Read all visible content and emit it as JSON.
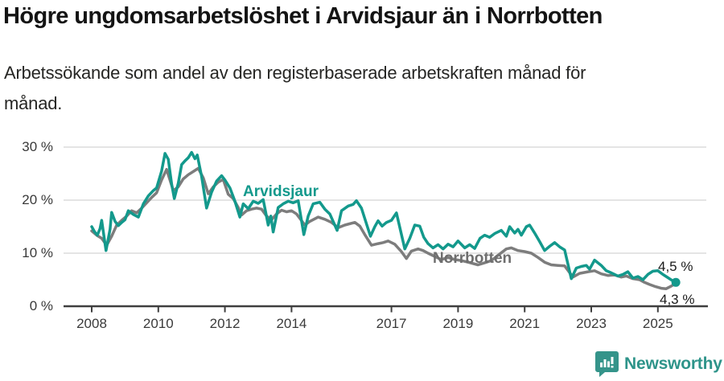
{
  "header": {
    "title": "Högre ungdomsarbetslöshet i Arvidsjaur än i Norrbotten",
    "subtitle_line1": "Arbetssökande som andel av den registerbaserade arbetskraften månad för",
    "subtitle_line2": "månad."
  },
  "chart_data": {
    "type": "line",
    "title": "Högre ungdomsarbetslöshet i Arvidsjaur än i Norrbotten",
    "subtitle": "Arbetssökande som andel av den registerbaserade arbetskraften månad för månad.",
    "unit": "%",
    "x_frequency": "monthly",
    "xlim": [
      2007.7,
      2026.2
    ],
    "ylim": [
      0,
      30
    ],
    "grid": "horizontal",
    "y_ticks": [
      {
        "value": 0,
        "label": "0 %"
      },
      {
        "value": 10,
        "label": "10 %"
      },
      {
        "value": 20,
        "label": "20 %"
      },
      {
        "value": 30,
        "label": "30 %"
      }
    ],
    "x_ticks": [
      {
        "value": 2008,
        "label": "2008"
      },
      {
        "value": 2010,
        "label": "2010"
      },
      {
        "value": 2012,
        "label": "2012"
      },
      {
        "value": 2014,
        "label": "2014"
      },
      {
        "value": 2017,
        "label": "2017"
      },
      {
        "value": 2019,
        "label": "2019"
      },
      {
        "value": 2021,
        "label": "2021"
      },
      {
        "value": 2023,
        "label": "2023"
      },
      {
        "value": 2025,
        "label": "2025"
      }
    ],
    "series": [
      {
        "name": "Norrbotten",
        "color": "#7d7d7d",
        "end_value": 4.3,
        "points": [
          [
            2008.0,
            14.2
          ],
          [
            2008.15,
            13.4
          ],
          [
            2008.3,
            12.8
          ],
          [
            2008.45,
            11.5
          ],
          [
            2008.6,
            13.2
          ],
          [
            2008.75,
            15.3
          ],
          [
            2008.9,
            16.2
          ],
          [
            2009.05,
            17.0
          ],
          [
            2009.2,
            18.0
          ],
          [
            2009.35,
            17.6
          ],
          [
            2009.5,
            18.5
          ],
          [
            2009.65,
            19.5
          ],
          [
            2009.8,
            20.5
          ],
          [
            2009.95,
            21.4
          ],
          [
            2010.1,
            23.8
          ],
          [
            2010.25,
            25.8
          ],
          [
            2010.45,
            21.8
          ],
          [
            2010.6,
            22.5
          ],
          [
            2010.75,
            24.0
          ],
          [
            2010.9,
            24.8
          ],
          [
            2011.05,
            25.4
          ],
          [
            2011.2,
            26.0
          ],
          [
            2011.35,
            24.2
          ],
          [
            2011.5,
            21.2
          ],
          [
            2011.65,
            22.5
          ],
          [
            2011.8,
            23.4
          ],
          [
            2011.95,
            23.9
          ],
          [
            2012.1,
            21.1
          ],
          [
            2012.25,
            20.3
          ],
          [
            2012.4,
            18.6
          ],
          [
            2012.5,
            17.2
          ],
          [
            2012.65,
            18.0
          ],
          [
            2012.8,
            18.3
          ],
          [
            2012.95,
            18.5
          ],
          [
            2013.1,
            18.3
          ],
          [
            2013.25,
            17.0
          ],
          [
            2013.4,
            16.3
          ],
          [
            2013.55,
            17.4
          ],
          [
            2013.7,
            18.1
          ],
          [
            2013.85,
            17.8
          ],
          [
            2014.0,
            18.0
          ],
          [
            2014.15,
            17.4
          ],
          [
            2014.4,
            15.3
          ],
          [
            2014.55,
            16.0
          ],
          [
            2014.8,
            16.8
          ],
          [
            2015.0,
            16.4
          ],
          [
            2015.2,
            15.8
          ],
          [
            2015.4,
            14.8
          ],
          [
            2015.6,
            15.3
          ],
          [
            2015.9,
            15.8
          ],
          [
            2016.05,
            15.1
          ],
          [
            2016.2,
            13.5
          ],
          [
            2016.4,
            11.5
          ],
          [
            2016.6,
            11.8
          ],
          [
            2016.75,
            12.0
          ],
          [
            2016.9,
            12.3
          ],
          [
            2017.1,
            11.7
          ],
          [
            2017.3,
            10.3
          ],
          [
            2017.45,
            9.0
          ],
          [
            2017.6,
            10.4
          ],
          [
            2017.8,
            10.8
          ],
          [
            2017.95,
            10.5
          ],
          [
            2018.1,
            10.0
          ],
          [
            2018.3,
            9.4
          ],
          [
            2018.5,
            8.8
          ],
          [
            2018.7,
            9.2
          ],
          [
            2018.9,
            8.8
          ],
          [
            2019.1,
            8.6
          ],
          [
            2019.3,
            8.3
          ],
          [
            2019.6,
            7.8
          ],
          [
            2019.8,
            8.2
          ],
          [
            2020.0,
            8.6
          ],
          [
            2020.2,
            9.6
          ],
          [
            2020.45,
            10.8
          ],
          [
            2020.6,
            11.0
          ],
          [
            2020.8,
            10.5
          ],
          [
            2021.0,
            10.3
          ],
          [
            2021.2,
            10.0
          ],
          [
            2021.4,
            9.2
          ],
          [
            2021.6,
            8.3
          ],
          [
            2021.8,
            7.8
          ],
          [
            2022.0,
            7.7
          ],
          [
            2022.2,
            7.6
          ],
          [
            2022.45,
            5.5
          ],
          [
            2022.65,
            6.2
          ],
          [
            2022.9,
            6.5
          ],
          [
            2023.1,
            6.7
          ],
          [
            2023.3,
            6.1
          ],
          [
            2023.5,
            5.8
          ],
          [
            2023.7,
            5.9
          ],
          [
            2023.9,
            5.5
          ],
          [
            2024.05,
            5.7
          ],
          [
            2024.25,
            5.2
          ],
          [
            2024.45,
            5.0
          ],
          [
            2024.6,
            4.5
          ],
          [
            2024.75,
            4.1
          ],
          [
            2024.93,
            3.7
          ],
          [
            2025.1,
            3.4
          ],
          [
            2025.25,
            3.3
          ],
          [
            2025.4,
            3.8
          ],
          [
            2025.54,
            4.3
          ]
        ]
      },
      {
        "name": "Arvidsjaur",
        "color": "#13998c",
        "end_value": 4.5,
        "end_dot": true,
        "points": [
          [
            2008.0,
            15.0
          ],
          [
            2008.08,
            14.1
          ],
          [
            2008.17,
            13.4
          ],
          [
            2008.25,
            14.6
          ],
          [
            2008.3,
            16.2
          ],
          [
            2008.43,
            10.5
          ],
          [
            2008.55,
            14.5
          ],
          [
            2008.6,
            17.7
          ],
          [
            2008.7,
            16.0
          ],
          [
            2008.8,
            15.2
          ],
          [
            2008.9,
            15.8
          ],
          [
            2009.0,
            16.3
          ],
          [
            2009.1,
            18.0
          ],
          [
            2009.25,
            17.3
          ],
          [
            2009.4,
            16.8
          ],
          [
            2009.55,
            19.3
          ],
          [
            2009.7,
            20.8
          ],
          [
            2009.85,
            21.8
          ],
          [
            2009.95,
            22.3
          ],
          [
            2010.1,
            25.5
          ],
          [
            2010.2,
            28.8
          ],
          [
            2010.3,
            27.7
          ],
          [
            2010.4,
            23.0
          ],
          [
            2010.48,
            20.3
          ],
          [
            2010.6,
            23.2
          ],
          [
            2010.7,
            26.7
          ],
          [
            2010.8,
            27.4
          ],
          [
            2010.9,
            28.0
          ],
          [
            2011.0,
            29.0
          ],
          [
            2011.1,
            27.8
          ],
          [
            2011.17,
            28.5
          ],
          [
            2011.3,
            24.5
          ],
          [
            2011.45,
            18.5
          ],
          [
            2011.6,
            21.5
          ],
          [
            2011.75,
            23.6
          ],
          [
            2011.9,
            24.6
          ],
          [
            2012.0,
            23.8
          ],
          [
            2012.15,
            22.3
          ],
          [
            2012.3,
            19.8
          ],
          [
            2012.45,
            16.8
          ],
          [
            2012.55,
            19.3
          ],
          [
            2012.7,
            18.4
          ],
          [
            2012.85,
            19.8
          ],
          [
            2013.0,
            19.4
          ],
          [
            2013.15,
            20.1
          ],
          [
            2013.3,
            15.3
          ],
          [
            2013.38,
            17.0
          ],
          [
            2013.45,
            14.0
          ],
          [
            2013.6,
            18.6
          ],
          [
            2013.75,
            19.3
          ],
          [
            2013.9,
            19.8
          ],
          [
            2014.05,
            19.5
          ],
          [
            2014.2,
            19.9
          ],
          [
            2014.37,
            13.5
          ],
          [
            2014.5,
            17.0
          ],
          [
            2014.65,
            19.3
          ],
          [
            2014.85,
            19.6
          ],
          [
            2015.0,
            18.3
          ],
          [
            2015.15,
            17.4
          ],
          [
            2015.37,
            14.3
          ],
          [
            2015.5,
            18.0
          ],
          [
            2015.7,
            18.9
          ],
          [
            2015.85,
            19.2
          ],
          [
            2015.95,
            19.9
          ],
          [
            2016.1,
            18.5
          ],
          [
            2016.37,
            13.2
          ],
          [
            2016.5,
            15.0
          ],
          [
            2016.6,
            16.1
          ],
          [
            2016.72,
            15.1
          ],
          [
            2016.85,
            15.8
          ],
          [
            2017.0,
            16.2
          ],
          [
            2017.15,
            17.6
          ],
          [
            2017.4,
            10.8
          ],
          [
            2017.55,
            12.8
          ],
          [
            2017.7,
            15.3
          ],
          [
            2017.85,
            15.1
          ],
          [
            2017.97,
            13.0
          ],
          [
            2018.1,
            11.8
          ],
          [
            2018.25,
            11.0
          ],
          [
            2018.4,
            11.6
          ],
          [
            2018.55,
            10.8
          ],
          [
            2018.7,
            11.7
          ],
          [
            2018.85,
            11.2
          ],
          [
            2019.0,
            12.3
          ],
          [
            2019.2,
            11.0
          ],
          [
            2019.35,
            11.6
          ],
          [
            2019.5,
            10.9
          ],
          [
            2019.66,
            12.8
          ],
          [
            2019.8,
            13.4
          ],
          [
            2019.95,
            13.0
          ],
          [
            2020.1,
            13.7
          ],
          [
            2020.3,
            14.3
          ],
          [
            2020.45,
            13.2
          ],
          [
            2020.55,
            15.0
          ],
          [
            2020.7,
            13.8
          ],
          [
            2020.8,
            14.5
          ],
          [
            2020.9,
            13.4
          ],
          [
            2021.05,
            15.0
          ],
          [
            2021.15,
            15.3
          ],
          [
            2021.3,
            13.8
          ],
          [
            2021.45,
            12.2
          ],
          [
            2021.6,
            10.5
          ],
          [
            2021.75,
            11.3
          ],
          [
            2021.9,
            12.0
          ],
          [
            2022.05,
            11.2
          ],
          [
            2022.2,
            10.6
          ],
          [
            2022.4,
            5.2
          ],
          [
            2022.55,
            7.2
          ],
          [
            2022.7,
            7.5
          ],
          [
            2022.85,
            7.7
          ],
          [
            2022.95,
            7.0
          ],
          [
            2023.1,
            8.7
          ],
          [
            2023.3,
            7.7
          ],
          [
            2023.45,
            6.7
          ],
          [
            2023.6,
            6.3
          ],
          [
            2023.8,
            5.7
          ],
          [
            2023.95,
            6.0
          ],
          [
            2024.1,
            6.5
          ],
          [
            2024.25,
            5.3
          ],
          [
            2024.4,
            5.6
          ],
          [
            2024.55,
            5.0
          ],
          [
            2024.7,
            6.0
          ],
          [
            2024.85,
            6.6
          ],
          [
            2025.0,
            6.7
          ],
          [
            2025.15,
            6.0
          ],
          [
            2025.3,
            5.4
          ],
          [
            2025.42,
            4.9
          ],
          [
            2025.54,
            4.5
          ]
        ]
      }
    ],
    "end_labels": {
      "arvidsjaur": "4,5 %",
      "norrbotten": "4,3 %"
    },
    "legend_position": "inline-labels"
  },
  "colors": {
    "accent_teal": "#13998c",
    "series_gray": "#7d7d7d",
    "grid": "#e4e4e4",
    "axis": "#3f3f3f",
    "tick_text": "#3a3a3a",
    "brand": "#2e948a"
  },
  "footer": {
    "brand": "Newsworthy"
  }
}
